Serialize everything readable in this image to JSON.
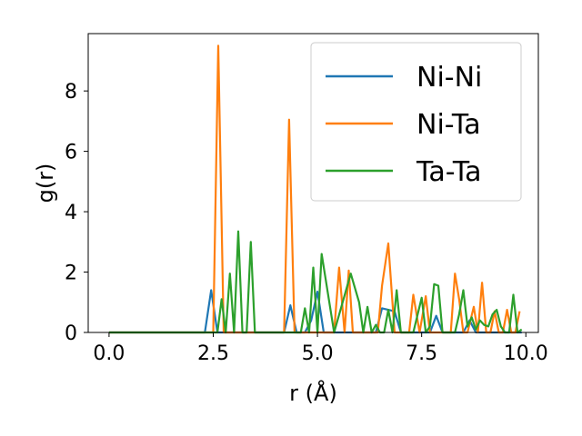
{
  "chart_data": {
    "type": "line",
    "xlabel": "r (Å)",
    "ylabel": "g(r)",
    "xlim": [
      -0.5,
      10.3
    ],
    "ylim": [
      0,
      9.9
    ],
    "xticks": [
      0.0,
      2.5,
      5.0,
      7.5,
      10.0
    ],
    "xtick_labels": [
      "0.0",
      "2.5",
      "5.0",
      "7.5",
      "10.0"
    ],
    "yticks": [
      0,
      2,
      4,
      6,
      8
    ],
    "ytick_labels": [
      "0",
      "2",
      "4",
      "6",
      "8"
    ],
    "grid": false,
    "legend_position": "top-right",
    "series": [
      {
        "name": "Ni-Ni",
        "color": "#1f77b4",
        "x": [
          0,
          2.3,
          2.45,
          2.6,
          4.2,
          4.35,
          4.5,
          4.7,
          4.85,
          5.0,
          5.15,
          6.4,
          6.55,
          6.7,
          6.85,
          7.0,
          7.7,
          7.85,
          8.0,
          8.5,
          8.65,
          8.8,
          9.9
        ],
        "values": [
          0,
          0,
          1.4,
          0,
          0,
          0.9,
          0,
          0,
          0.4,
          1.35,
          0,
          0,
          0.8,
          0.75,
          0.7,
          0,
          0,
          0.55,
          0,
          0,
          0.4,
          0,
          0
        ]
      },
      {
        "name": "Ni-Ta",
        "color": "#ff7f0e",
        "x": [
          0,
          2.5,
          2.62,
          2.75,
          4.2,
          4.32,
          4.45,
          5.4,
          5.52,
          5.65,
          5.75,
          5.85,
          6.45,
          6.55,
          6.7,
          6.85,
          7.2,
          7.3,
          7.45,
          7.6,
          7.7,
          7.8,
          8.2,
          8.3,
          8.4,
          8.5,
          8.6,
          8.75,
          8.85,
          8.95,
          9.05,
          9.15,
          9.25,
          9.35,
          9.45,
          9.55,
          9.65,
          9.75,
          9.85
        ],
        "values": [
          0,
          0,
          9.5,
          0,
          0,
          7.05,
          0,
          0,
          2.15,
          0,
          2.05,
          0,
          0,
          1.55,
          2.95,
          0,
          0,
          1.25,
          0,
          1.2,
          0,
          0,
          0,
          1.95,
          1.1,
          0,
          0,
          0.85,
          0,
          1.65,
          0,
          0,
          0.7,
          0,
          0,
          0.75,
          0,
          0,
          0.7
        ]
      },
      {
        "name": "Ta-Ta",
        "color": "#2ca02c",
        "x": [
          0,
          2.6,
          2.7,
          2.8,
          2.9,
          3.0,
          3.1,
          3.2,
          3.3,
          3.4,
          3.5,
          4.6,
          4.7,
          4.8,
          4.9,
          5.0,
          5.1,
          5.4,
          5.8,
          6.0,
          6.1,
          6.2,
          6.3,
          6.4,
          6.5,
          6.6,
          6.7,
          6.8,
          6.9,
          7.0,
          7.1,
          7.2,
          7.3,
          7.5,
          7.6,
          7.7,
          7.8,
          7.9,
          8.0,
          8.1,
          8.2,
          8.3,
          8.4,
          8.5,
          8.6,
          8.7,
          8.8,
          8.9,
          9.0,
          9.1,
          9.2,
          9.3,
          9.4,
          9.5,
          9.6,
          9.7,
          9.8,
          9.9
        ],
        "values": [
          0,
          0,
          1.1,
          0,
          1.95,
          0,
          3.35,
          0,
          0,
          3.0,
          0,
          0,
          0.8,
          0,
          2.15,
          0,
          2.6,
          0,
          1.95,
          1.0,
          0,
          0.85,
          0,
          0.25,
          0,
          0,
          0.75,
          0,
          1.4,
          0,
          0,
          0,
          0,
          1.15,
          0,
          0.2,
          1.6,
          1.55,
          0,
          0,
          0,
          0,
          0.6,
          1.4,
          0.2,
          0.5,
          0.1,
          0.4,
          0.25,
          0.2,
          0.6,
          0.75,
          0.2,
          0,
          0,
          1.25,
          0,
          0.1
        ]
      }
    ]
  }
}
